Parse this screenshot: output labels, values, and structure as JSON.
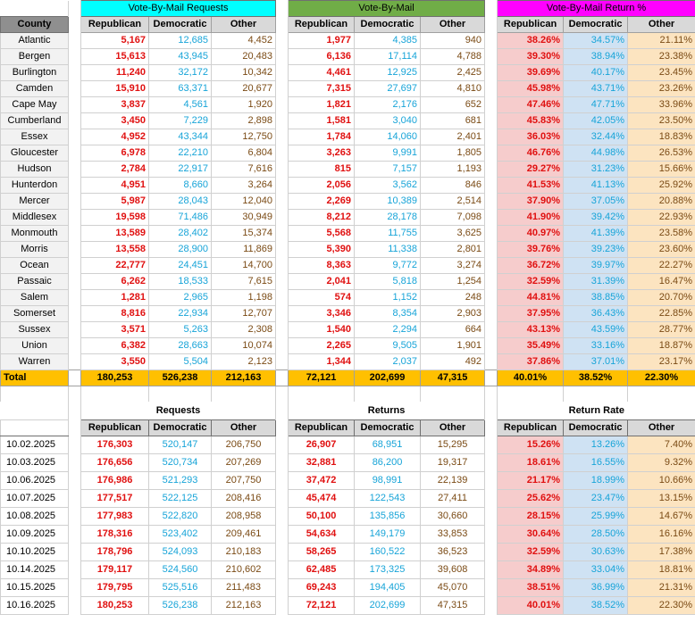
{
  "top": {
    "headers": {
      "county": "County",
      "requests_title": "Vote-By-Mail Requests",
      "vbm_title": "Vote-By-Mail",
      "return_title": "Vote-By-Mail Return %",
      "rep": "Republican",
      "dem": "Democratic",
      "oth": "Other"
    },
    "rows": [
      {
        "county": "Atlantic",
        "req_r": "5,167",
        "req_d": "12,685",
        "req_o": "4,452",
        "vbm_r": "1,977",
        "vbm_d": "4,385",
        "vbm_o": "940",
        "ret_r": "38.26%",
        "ret_d": "34.57%",
        "ret_o": "21.11%"
      },
      {
        "county": "Bergen",
        "req_r": "15,613",
        "req_d": "43,945",
        "req_o": "20,483",
        "vbm_r": "6,136",
        "vbm_d": "17,114",
        "vbm_o": "4,788",
        "ret_r": "39.30%",
        "ret_d": "38.94%",
        "ret_o": "23.38%"
      },
      {
        "county": "Burlington",
        "req_r": "11,240",
        "req_d": "32,172",
        "req_o": "10,342",
        "vbm_r": "4,461",
        "vbm_d": "12,925",
        "vbm_o": "2,425",
        "ret_r": "39.69%",
        "ret_d": "40.17%",
        "ret_o": "23.45%"
      },
      {
        "county": "Camden",
        "req_r": "15,910",
        "req_d": "63,371",
        "req_o": "20,677",
        "vbm_r": "7,315",
        "vbm_d": "27,697",
        "vbm_o": "4,810",
        "ret_r": "45.98%",
        "ret_d": "43.71%",
        "ret_o": "23.26%"
      },
      {
        "county": "Cape May",
        "req_r": "3,837",
        "req_d": "4,561",
        "req_o": "1,920",
        "vbm_r": "1,821",
        "vbm_d": "2,176",
        "vbm_o": "652",
        "ret_r": "47.46%",
        "ret_d": "47.71%",
        "ret_o": "33.96%"
      },
      {
        "county": "Cumberland",
        "req_r": "3,450",
        "req_d": "7,229",
        "req_o": "2,898",
        "vbm_r": "1,581",
        "vbm_d": "3,040",
        "vbm_o": "681",
        "ret_r": "45.83%",
        "ret_d": "42.05%",
        "ret_o": "23.50%"
      },
      {
        "county": "Essex",
        "req_r": "4,952",
        "req_d": "43,344",
        "req_o": "12,750",
        "vbm_r": "1,784",
        "vbm_d": "14,060",
        "vbm_o": "2,401",
        "ret_r": "36.03%",
        "ret_d": "32.44%",
        "ret_o": "18.83%"
      },
      {
        "county": "Gloucester",
        "req_r": "6,978",
        "req_d": "22,210",
        "req_o": "6,804",
        "vbm_r": "3,263",
        "vbm_d": "9,991",
        "vbm_o": "1,805",
        "ret_r": "46.76%",
        "ret_d": "44.98%",
        "ret_o": "26.53%"
      },
      {
        "county": "Hudson",
        "req_r": "2,784",
        "req_d": "22,917",
        "req_o": "7,616",
        "vbm_r": "815",
        "vbm_d": "7,157",
        "vbm_o": "1,193",
        "ret_r": "29.27%",
        "ret_d": "31.23%",
        "ret_o": "15.66%"
      },
      {
        "county": "Hunterdon",
        "req_r": "4,951",
        "req_d": "8,660",
        "req_o": "3,264",
        "vbm_r": "2,056",
        "vbm_d": "3,562",
        "vbm_o": "846",
        "ret_r": "41.53%",
        "ret_d": "41.13%",
        "ret_o": "25.92%"
      },
      {
        "county": "Mercer",
        "req_r": "5,987",
        "req_d": "28,043",
        "req_o": "12,040",
        "vbm_r": "2,269",
        "vbm_d": "10,389",
        "vbm_o": "2,514",
        "ret_r": "37.90%",
        "ret_d": "37.05%",
        "ret_o": "20.88%"
      },
      {
        "county": "Middlesex",
        "req_r": "19,598",
        "req_d": "71,486",
        "req_o": "30,949",
        "vbm_r": "8,212",
        "vbm_d": "28,178",
        "vbm_o": "7,098",
        "ret_r": "41.90%",
        "ret_d": "39.42%",
        "ret_o": "22.93%"
      },
      {
        "county": "Monmouth",
        "req_r": "13,589",
        "req_d": "28,402",
        "req_o": "15,374",
        "vbm_r": "5,568",
        "vbm_d": "11,755",
        "vbm_o": "3,625",
        "ret_r": "40.97%",
        "ret_d": "41.39%",
        "ret_o": "23.58%"
      },
      {
        "county": "Morris",
        "req_r": "13,558",
        "req_d": "28,900",
        "req_o": "11,869",
        "vbm_r": "5,390",
        "vbm_d": "11,338",
        "vbm_o": "2,801",
        "ret_r": "39.76%",
        "ret_d": "39.23%",
        "ret_o": "23.60%"
      },
      {
        "county": "Ocean",
        "req_r": "22,777",
        "req_d": "24,451",
        "req_o": "14,700",
        "vbm_r": "8,363",
        "vbm_d": "9,772",
        "vbm_o": "3,274",
        "ret_r": "36.72%",
        "ret_d": "39.97%",
        "ret_o": "22.27%"
      },
      {
        "county": "Passaic",
        "req_r": "6,262",
        "req_d": "18,533",
        "req_o": "7,615",
        "vbm_r": "2,041",
        "vbm_d": "5,818",
        "vbm_o": "1,254",
        "ret_r": "32.59%",
        "ret_d": "31.39%",
        "ret_o": "16.47%"
      },
      {
        "county": "Salem",
        "req_r": "1,281",
        "req_d": "2,965",
        "req_o": "1,198",
        "vbm_r": "574",
        "vbm_d": "1,152",
        "vbm_o": "248",
        "ret_r": "44.81%",
        "ret_d": "38.85%",
        "ret_o": "20.70%"
      },
      {
        "county": "Somerset",
        "req_r": "8,816",
        "req_d": "22,934",
        "req_o": "12,707",
        "vbm_r": "3,346",
        "vbm_d": "8,354",
        "vbm_o": "2,903",
        "ret_r": "37.95%",
        "ret_d": "36.43%",
        "ret_o": "22.85%"
      },
      {
        "county": "Sussex",
        "req_r": "3,571",
        "req_d": "5,263",
        "req_o": "2,308",
        "vbm_r": "1,540",
        "vbm_d": "2,294",
        "vbm_o": "664",
        "ret_r": "43.13%",
        "ret_d": "43.59%",
        "ret_o": "28.77%"
      },
      {
        "county": "Union",
        "req_r": "6,382",
        "req_d": "28,663",
        "req_o": "10,074",
        "vbm_r": "2,265",
        "vbm_d": "9,505",
        "vbm_o": "1,901",
        "ret_r": "35.49%",
        "ret_d": "33.16%",
        "ret_o": "18.87%"
      },
      {
        "county": "Warren",
        "req_r": "3,550",
        "req_d": "5,504",
        "req_o": "2,123",
        "vbm_r": "1,344",
        "vbm_d": "2,037",
        "vbm_o": "492",
        "ret_r": "37.86%",
        "ret_d": "37.01%",
        "ret_o": "23.17%"
      }
    ],
    "total": {
      "label": "Total",
      "req_r": "180,253",
      "req_d": "526,238",
      "req_o": "212,163",
      "vbm_r": "72,121",
      "vbm_d": "202,699",
      "vbm_o": "47,315",
      "ret_r": "40.01%",
      "ret_d": "38.52%",
      "ret_o": "22.30%"
    }
  },
  "bottom": {
    "titles": {
      "requests": "Requests",
      "returns": "Returns",
      "rate": "Return Rate"
    },
    "rows": [
      {
        "date": "10.02.2025",
        "req_r": "176,303",
        "req_d": "520,147",
        "req_o": "206,750",
        "ret_r": "26,907",
        "ret_d": "68,951",
        "ret_o": "15,295",
        "rate_r": "15.26%",
        "rate_d": "13.26%",
        "rate_o": "7.40%"
      },
      {
        "date": "10.03.2025",
        "req_r": "176,656",
        "req_d": "520,734",
        "req_o": "207,269",
        "ret_r": "32,881",
        "ret_d": "86,200",
        "ret_o": "19,317",
        "rate_r": "18.61%",
        "rate_d": "16.55%",
        "rate_o": "9.32%"
      },
      {
        "date": "10.06.2025",
        "req_r": "176,986",
        "req_d": "521,293",
        "req_o": "207,750",
        "ret_r": "37,472",
        "ret_d": "98,991",
        "ret_o": "22,139",
        "rate_r": "21.17%",
        "rate_d": "18.99%",
        "rate_o": "10.66%"
      },
      {
        "date": "10.07.2025",
        "req_r": "177,517",
        "req_d": "522,125",
        "req_o": "208,416",
        "ret_r": "45,474",
        "ret_d": "122,543",
        "ret_o": "27,411",
        "rate_r": "25.62%",
        "rate_d": "23.47%",
        "rate_o": "13.15%"
      },
      {
        "date": "10.08.2025",
        "req_r": "177,983",
        "req_d": "522,820",
        "req_o": "208,958",
        "ret_r": "50,100",
        "ret_d": "135,856",
        "ret_o": "30,660",
        "rate_r": "28.15%",
        "rate_d": "25.99%",
        "rate_o": "14.67%"
      },
      {
        "date": "10.09.2025",
        "req_r": "178,316",
        "req_d": "523,402",
        "req_o": "209,461",
        "ret_r": "54,634",
        "ret_d": "149,179",
        "ret_o": "33,853",
        "rate_r": "30.64%",
        "rate_d": "28.50%",
        "rate_o": "16.16%"
      },
      {
        "date": "10.10.2025",
        "req_r": "178,796",
        "req_d": "524,093",
        "req_o": "210,183",
        "ret_r": "58,265",
        "ret_d": "160,522",
        "ret_o": "36,523",
        "rate_r": "32.59%",
        "rate_d": "30.63%",
        "rate_o": "17.38%"
      },
      {
        "date": "10.14.2025",
        "req_r": "179,117",
        "req_d": "524,560",
        "req_o": "210,602",
        "ret_r": "62,485",
        "ret_d": "173,325",
        "ret_o": "39,608",
        "rate_r": "34.89%",
        "rate_d": "33.04%",
        "rate_o": "18.81%"
      },
      {
        "date": "10.15.2025",
        "req_r": "179,795",
        "req_d": "525,516",
        "req_o": "211,483",
        "ret_r": "69,243",
        "ret_d": "194,405",
        "ret_o": "45,070",
        "rate_r": "38.51%",
        "rate_d": "36.99%",
        "rate_o": "21.31%"
      },
      {
        "date": "10.16.2025",
        "req_r": "180,253",
        "req_d": "526,238",
        "req_o": "212,163",
        "ret_r": "72,121",
        "ret_d": "202,699",
        "ret_o": "47,315",
        "rate_r": "40.01%",
        "rate_d": "38.52%",
        "rate_o": "22.30%"
      }
    ]
  },
  "colors": {
    "republican": "#e01010",
    "democratic": "#17a4d8",
    "other": "#7a4a14",
    "total_fill": "#ffc000",
    "requests_header": "#00ffff",
    "vbm_header": "#70ad47",
    "return_header": "#ff00ff"
  }
}
